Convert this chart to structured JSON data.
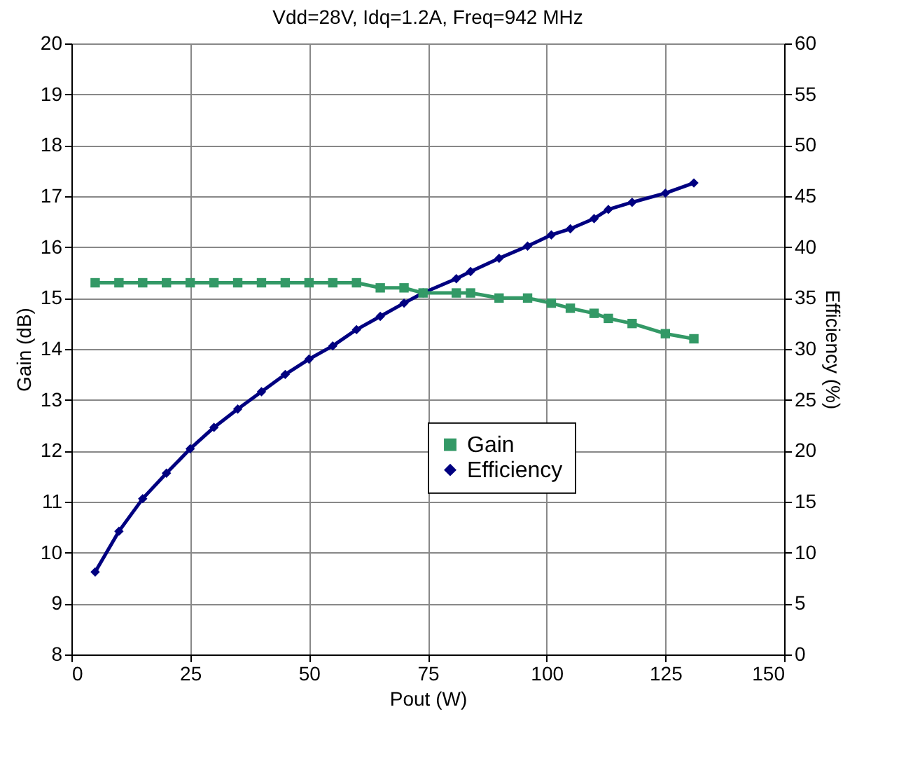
{
  "chart_data": {
    "type": "line",
    "title": "Vdd=28V, Idq=1.2A, Freq=942 MHz",
    "xlabel": "Pout (W)",
    "ylabel": "Gain (dB)",
    "y2label": "Efficiency (%)",
    "x": [
      5,
      10,
      15,
      20,
      25,
      30,
      35,
      40,
      45,
      50,
      55,
      60,
      65,
      70,
      74,
      81,
      84,
      90,
      96,
      101,
      105,
      110,
      113,
      118,
      125,
      131
    ],
    "series": [
      {
        "name": "Gain",
        "color": "#339966",
        "marker": "square",
        "values": [
          15.3,
          15.3,
          15.3,
          15.3,
          15.3,
          15.3,
          15.3,
          15.3,
          15.3,
          15.3,
          15.3,
          15.3,
          15.2,
          15.2,
          15.1,
          15.1,
          15.1,
          15.0,
          15.0,
          14.9,
          14.8,
          14.7,
          14.6,
          14.5,
          14.3,
          14.2
        ]
      },
      {
        "name": "Efficiency",
        "color": "#000080",
        "marker": "diamond",
        "axis": "y2",
        "values": [
          8.1,
          12.1,
          15.3,
          17.8,
          20.2,
          22.3,
          24.1,
          25.8,
          27.5,
          29.0,
          30.3,
          31.9,
          33.2,
          34.5,
          35.5,
          36.9,
          37.6,
          38.9,
          40.1,
          41.2,
          41.8,
          42.8,
          43.7,
          44.4,
          45.3,
          46.3
        ]
      }
    ],
    "xlim": [
      0,
      150
    ],
    "xticks": [
      0,
      25,
      50,
      75,
      100,
      125,
      150
    ],
    "ylim": [
      8,
      20
    ],
    "yticks": [
      8,
      9,
      10,
      11,
      12,
      13,
      14,
      15,
      16,
      17,
      18,
      19,
      20
    ],
    "y2lim": [
      0,
      60
    ],
    "y2ticks": [
      0,
      5,
      10,
      15,
      20,
      25,
      30,
      35,
      40,
      45,
      50,
      55,
      60
    ],
    "grid": true,
    "legend": "right",
    "line_style": "solid"
  }
}
